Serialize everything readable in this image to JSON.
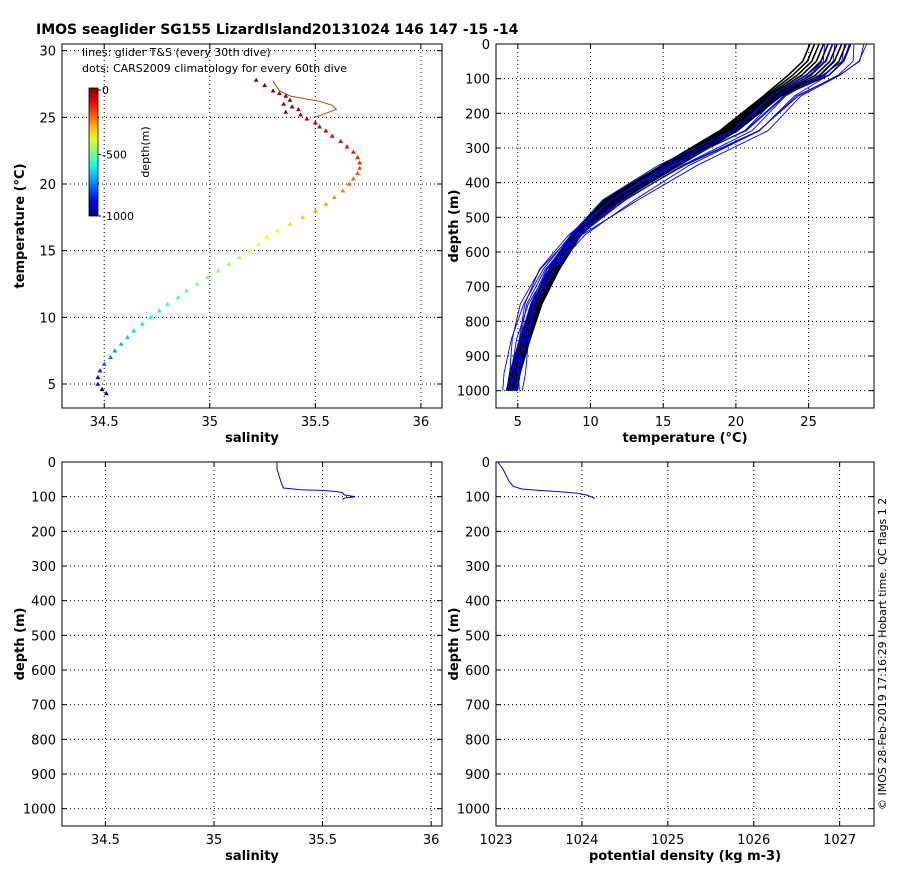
{
  "header": {
    "title": "IMOS seaglider SG155 LizardIsland20131024 146  147  -15  -14",
    "note_lines": "lines: glider T&S (every 30th dive)",
    "note_dots": "dots: CARS2009 climatology for every 60th dive"
  },
  "side_text": "© IMOS 28-Feb-2019 17:16:29 Hobart time. QC flags 1  2",
  "colorbar": {
    "label": "depth(m)",
    "ticks": [
      "0",
      "-500",
      "-1000"
    ],
    "range": [
      -1000,
      0
    ]
  },
  "chart_data": [
    {
      "type": "scatter",
      "name": "ts-diagram",
      "xlabel": "salinity",
      "ylabel": "temperature (°C)",
      "xlim": [
        34.3,
        36.1
      ],
      "ylim": [
        3.2,
        30.5
      ],
      "xticks": [
        "34.5",
        "35",
        "35.5",
        "36"
      ],
      "yticks": [
        "5",
        "10",
        "15",
        "20",
        "25",
        "30"
      ],
      "grid": true,
      "series": [
        {
          "kind": "line",
          "color": "#b04a00",
          "points": [
            [
              35.3,
              27.7
            ],
            [
              35.33,
              27.0
            ],
            [
              35.38,
              26.6
            ],
            [
              35.45,
              26.4
            ],
            [
              35.52,
              26.2
            ],
            [
              35.58,
              25.9
            ],
            [
              35.6,
              25.6
            ],
            [
              35.55,
              25.3
            ],
            [
              35.5,
              25.0
            ]
          ]
        },
        {
          "kind": "climatology-dots",
          "colormap": "jet-depth",
          "points": [
            [
              35.22,
              27.8,
              0
            ],
            [
              35.26,
              27.4,
              0
            ],
            [
              35.3,
              27.0,
              -10
            ],
            [
              35.33,
              26.8,
              -10
            ],
            [
              35.36,
              26.6,
              -15
            ],
            [
              35.38,
              26.3,
              -20
            ],
            [
              35.35,
              26.0,
              -25
            ],
            [
              35.39,
              25.8,
              -30
            ],
            [
              35.42,
              25.6,
              -35
            ],
            [
              35.36,
              25.4,
              -40
            ],
            [
              35.43,
              25.2,
              -45
            ],
            [
              35.46,
              24.9,
              -55
            ],
            [
              35.5,
              24.6,
              -60
            ],
            [
              35.52,
              24.3,
              -70
            ],
            [
              35.55,
              24.0,
              -80
            ],
            [
              35.58,
              23.6,
              -95
            ],
            [
              35.62,
              23.2,
              -110
            ],
            [
              35.65,
              22.8,
              -125
            ],
            [
              35.68,
              22.4,
              -140
            ],
            [
              35.7,
              22.0,
              -155
            ],
            [
              35.71,
              21.6,
              -170
            ],
            [
              35.71,
              21.2,
              -185
            ],
            [
              35.7,
              20.8,
              -200
            ],
            [
              35.68,
              20.4,
              -215
            ],
            [
              35.66,
              20.0,
              -230
            ],
            [
              35.63,
              19.5,
              -250
            ],
            [
              35.59,
              19.0,
              -265
            ],
            [
              35.55,
              18.5,
              -280
            ],
            [
              35.5,
              18.0,
              -300
            ],
            [
              35.44,
              17.5,
              -320
            ],
            [
              35.38,
              17.0,
              -340
            ],
            [
              35.32,
              16.5,
              -360
            ],
            [
              35.27,
              16.0,
              -380
            ],
            [
              35.23,
              15.5,
              -400
            ],
            [
              35.19,
              15.0,
              -420
            ],
            [
              35.14,
              14.5,
              -440
            ],
            [
              35.09,
              14.0,
              -460
            ],
            [
              35.04,
              13.5,
              -480
            ],
            [
              34.99,
              13.0,
              -500
            ],
            [
              34.94,
              12.5,
              -520
            ],
            [
              34.89,
              12.0,
              -540
            ],
            [
              34.85,
              11.5,
              -560
            ],
            [
              34.8,
              11.0,
              -580
            ],
            [
              34.76,
              10.5,
              -600
            ],
            [
              34.72,
              10.0,
              -620
            ],
            [
              34.68,
              9.5,
              -640
            ],
            [
              34.64,
              9.0,
              -660
            ],
            [
              34.61,
              8.5,
              -680
            ],
            [
              34.58,
              8.0,
              -700
            ],
            [
              34.55,
              7.5,
              -730
            ],
            [
              34.53,
              7.0,
              -760
            ],
            [
              34.5,
              6.5,
              -800
            ],
            [
              34.48,
              6.0,
              -840
            ],
            [
              34.47,
              5.5,
              -880
            ],
            [
              34.47,
              5.0,
              -930
            ],
            [
              34.49,
              4.6,
              -970
            ],
            [
              34.51,
              4.3,
              -1000
            ]
          ]
        }
      ]
    },
    {
      "type": "line",
      "name": "temperature-profiles",
      "xlabel": "temperature (°C)",
      "ylabel": "depth (m)",
      "xlim": [
        3.5,
        29.5
      ],
      "ylim": [
        0,
        1050
      ],
      "y_reversed": true,
      "xticks": [
        "5",
        "10",
        "15",
        "20",
        "25"
      ],
      "yticks": [
        "0",
        "100",
        "200",
        "300",
        "400",
        "500",
        "600",
        "700",
        "800",
        "900",
        "1000"
      ],
      "grid": true,
      "series": [
        {
          "name": "",
          "color": "#000000",
          "profile_count": 10,
          "depth": [
            0,
            50,
            90,
            150,
            250,
            350,
            450,
            550,
            650,
            750,
            850,
            950,
            1000
          ],
          "temperature": [
            26.5,
            26.0,
            25.0,
            22.5,
            19.5,
            15.5,
            11.5,
            9.0,
            7.5,
            6.3,
            5.5,
            4.8,
            4.6
          ]
        },
        {
          "name": "",
          "color": "#0000ff",
          "profile_count": 10,
          "depth": [
            0,
            50,
            90,
            150,
            250,
            350,
            450,
            550,
            650,
            750,
            850,
            950,
            1000
          ],
          "temperature": [
            27.5,
            27.2,
            26.0,
            23.5,
            21.0,
            16.0,
            12.0,
            9.0,
            7.0,
            5.8,
            5.2,
            4.8,
            4.6
          ]
        }
      ]
    },
    {
      "type": "line",
      "name": "salinity-profile",
      "xlabel": "salinity",
      "ylabel": "depth (m)",
      "xlim": [
        34.3,
        36.05
      ],
      "ylim": [
        0,
        1050
      ],
      "y_reversed": true,
      "xticks": [
        "34.5",
        "35",
        "35.5",
        "36"
      ],
      "yticks": [
        "0",
        "100",
        "200",
        "300",
        "400",
        "500",
        "600",
        "700",
        "800",
        "900",
        "1000"
      ],
      "grid": true,
      "series": [
        {
          "name": "",
          "color": "#0000ff",
          "points": [
            [
              35.29,
              0
            ],
            [
              35.29,
              20
            ],
            [
              35.3,
              40
            ],
            [
              35.31,
              60
            ],
            [
              35.32,
              75
            ],
            [
              35.4,
              80
            ],
            [
              35.5,
              82
            ],
            [
              35.56,
              85
            ],
            [
              35.59,
              88
            ],
            [
              35.6,
              95
            ],
            [
              35.65,
              100
            ],
            [
              35.6,
              104
            ],
            [
              35.59,
              108
            ]
          ]
        }
      ]
    },
    {
      "type": "line",
      "name": "density-profile",
      "xlabel": "potential density (kg m-3)",
      "ylabel": "depth (m)",
      "xlim": [
        1023,
        1027.4
      ],
      "ylim": [
        0,
        1050
      ],
      "y_reversed": true,
      "xticks": [
        "1023",
        "1024",
        "1025",
        "1026",
        "1027"
      ],
      "yticks": [
        "0",
        "100",
        "200",
        "300",
        "400",
        "500",
        "600",
        "700",
        "800",
        "900",
        "1000"
      ],
      "grid": true,
      "series": [
        {
          "name": "",
          "color": "#0000ff",
          "points": [
            [
              1023.02,
              0
            ],
            [
              1023.05,
              10
            ],
            [
              1023.08,
              20
            ],
            [
              1023.12,
              40
            ],
            [
              1023.15,
              55
            ],
            [
              1023.2,
              70
            ],
            [
              1023.3,
              78
            ],
            [
              1023.5,
              82
            ],
            [
              1023.75,
              86
            ],
            [
              1023.95,
              90
            ],
            [
              1024.05,
              95
            ],
            [
              1024.15,
              105
            ]
          ]
        }
      ]
    }
  ]
}
